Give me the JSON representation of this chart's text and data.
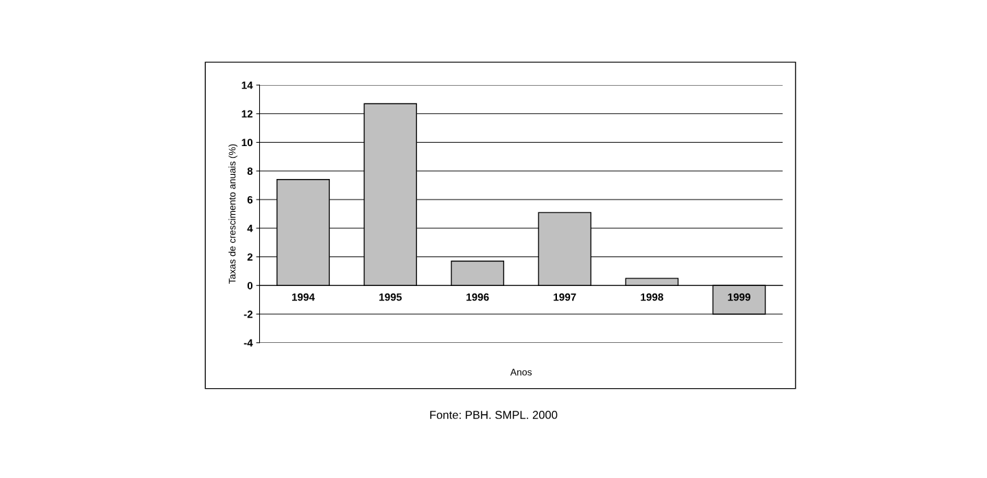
{
  "chart_data": {
    "type": "bar",
    "xlabel": "Anos",
    "ylabel": "Taxas de crescimento anuais (%)",
    "categories": [
      "1994",
      "1995",
      "1996",
      "1997",
      "1998",
      "1999"
    ],
    "values": [
      7.4,
      12.7,
      1.7,
      5.1,
      0.5,
      -2.0
    ],
    "color": "#c0c0c0",
    "ylim": [
      -4,
      14
    ],
    "yticks": [
      -4,
      -2,
      0,
      2,
      4,
      6,
      8,
      10,
      12,
      14
    ],
    "grid": "y",
    "annotations": [
      "Fonte: PBH. SMPL. 2000"
    ]
  }
}
